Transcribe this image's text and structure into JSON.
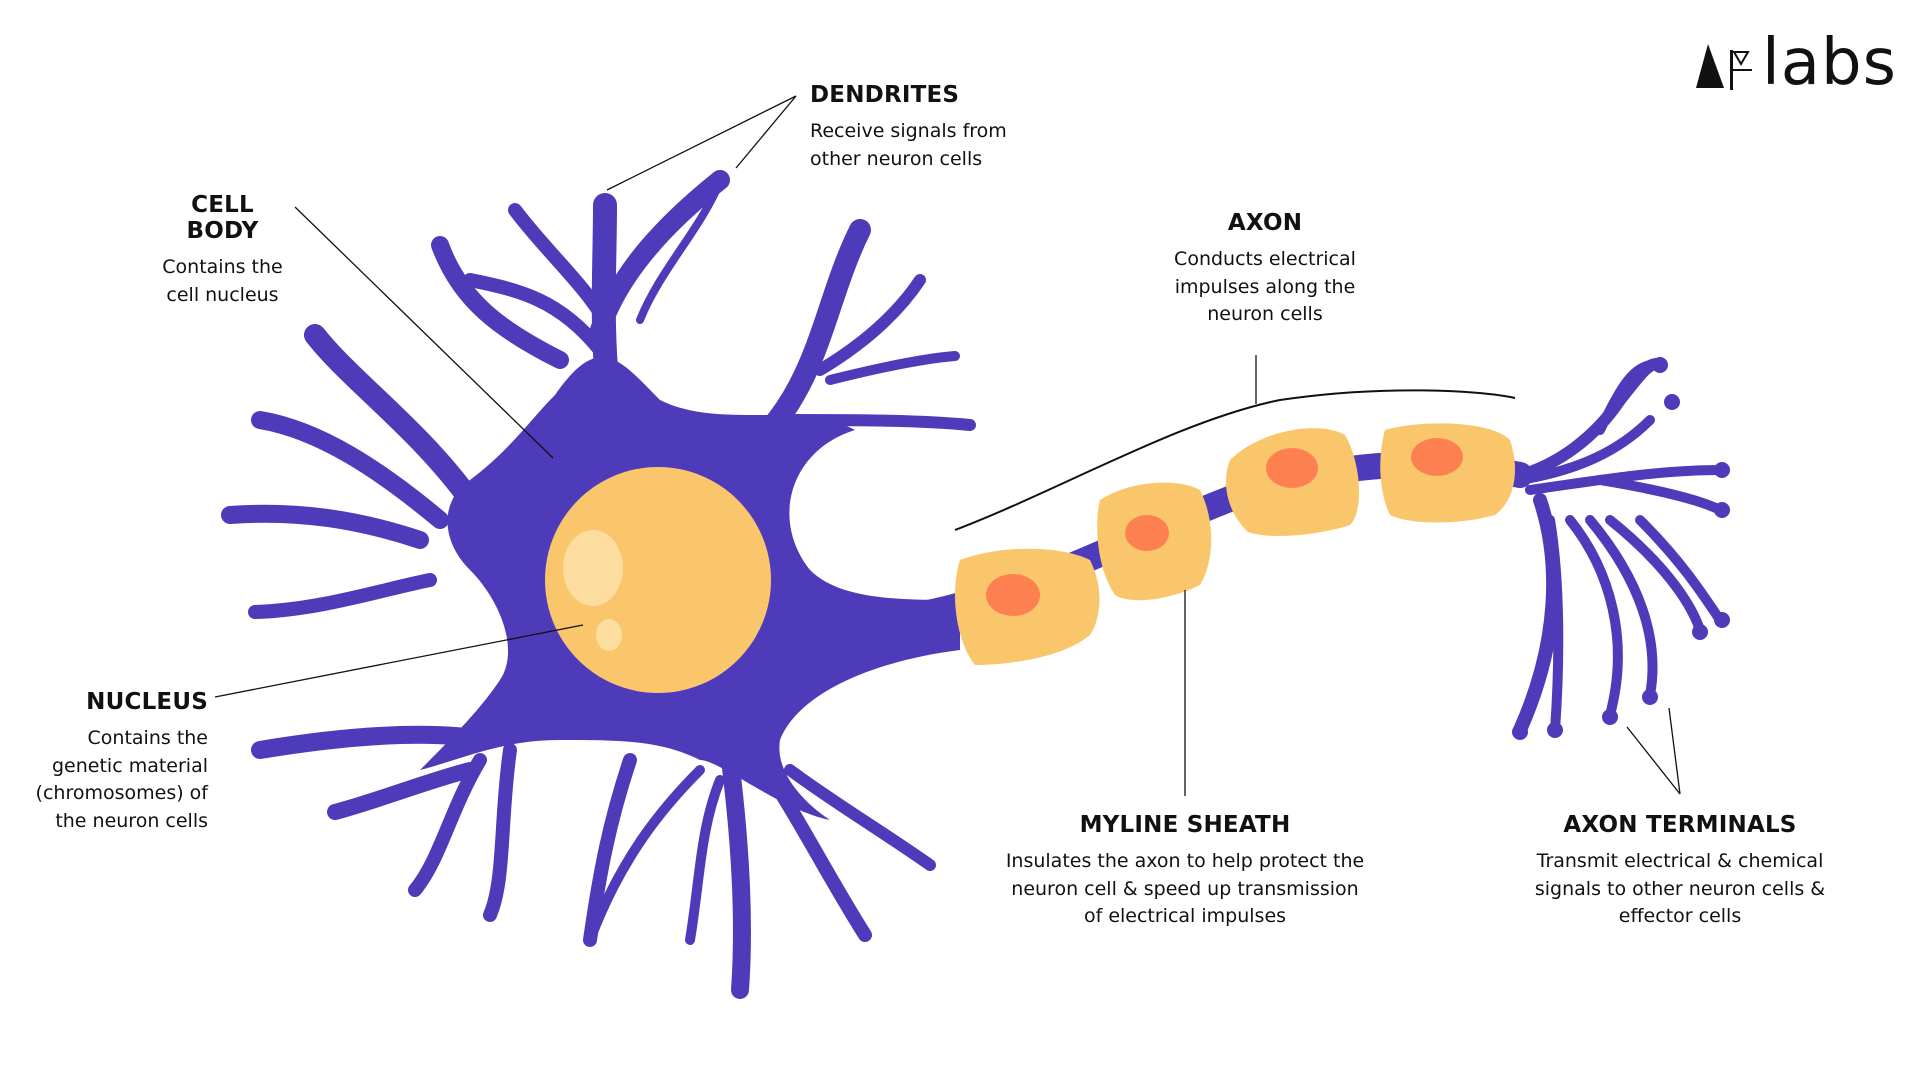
{
  "brand": {
    "name": "labs"
  },
  "colors": {
    "neuron": "#4E3BBA",
    "nucleus": "#FAC66C",
    "nucleus_highlight": "#FDDDA0",
    "myelin": "#FAC66C",
    "myelin_node": "#FD8050",
    "text": "#111111"
  },
  "labels": {
    "dendrites": {
      "title": "DENDRITES",
      "desc": [
        "Receive signals from",
        "other neuron cells"
      ]
    },
    "cell_body": {
      "title": "CELL BODY",
      "desc": [
        "Contains the",
        "cell nucleus"
      ]
    },
    "axon": {
      "title": "AXON",
      "desc": [
        "Conducts electrical",
        "impulses along the",
        "neuron cells"
      ]
    },
    "nucleus": {
      "title": "NUCLEUS",
      "desc": [
        "Contains the",
        "genetic material",
        "(chromosomes) of",
        "the neuron cells"
      ]
    },
    "myelin": {
      "title": "MYLINE SHEATH",
      "desc": [
        "Insulates the axon to help protect the",
        "neuron cell & speed up transmission",
        "of electrical impulses"
      ]
    },
    "terminals": {
      "title": "AXON TERMINALS",
      "desc": [
        "Transmit electrical & chemical",
        "signals to other neuron cells &",
        "effector cells"
      ]
    }
  }
}
